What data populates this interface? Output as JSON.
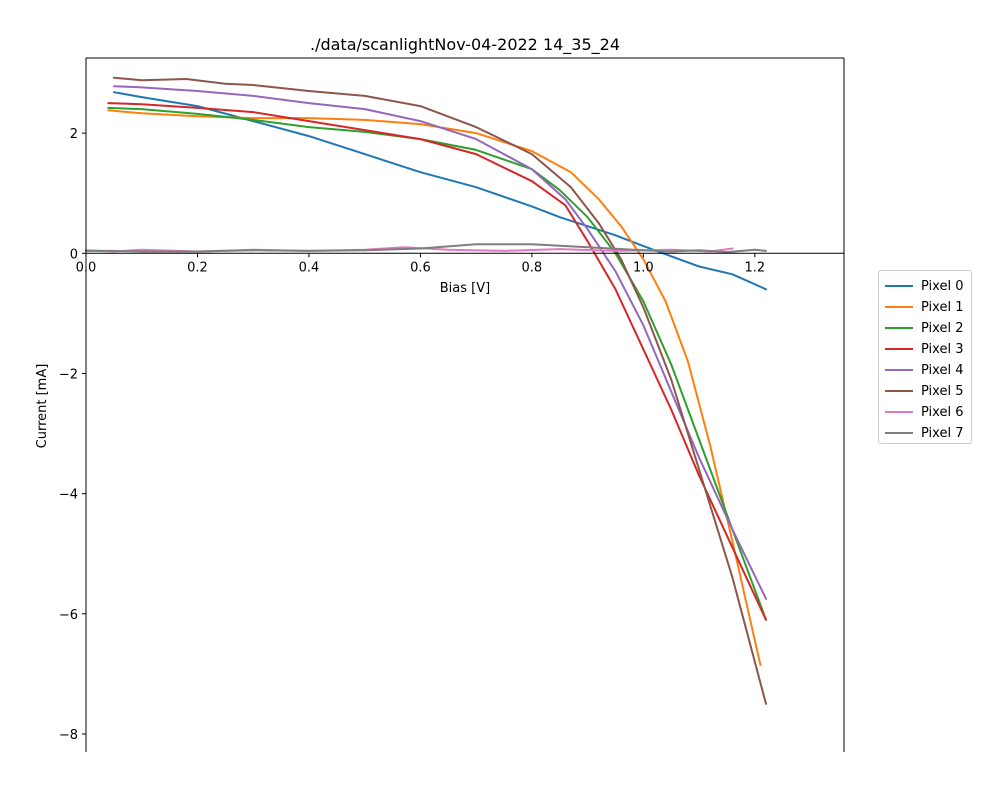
{
  "chart_data": {
    "type": "line",
    "title": "./data/scanlightNov-04-2022 14_35_24",
    "xlabel": "Bias [V]",
    "ylabel": "Current [mA]",
    "xlim": [
      0.0,
      1.36
    ],
    "ylim": [
      -8.3,
      3.25
    ],
    "x_ticks": [
      0.0,
      0.2,
      0.4,
      0.6,
      0.8,
      1.0,
      1.2
    ],
    "x_tick_labels": [
      "0.0",
      "0.2",
      "0.4",
      "0.6",
      "0.8",
      "1.0",
      "1.2"
    ],
    "y_ticks": [
      2,
      0,
      -2,
      -4,
      -6,
      -8
    ],
    "y_tick_labels": [
      "2",
      "0",
      "−2",
      "−4",
      "−6",
      "−8"
    ],
    "grid": false,
    "legend_position": "outside-right",
    "series": [
      {
        "name": "Pixel 0",
        "color": "#1f77b4",
        "x": [
          0.05,
          0.1,
          0.2,
          0.3,
          0.4,
          0.5,
          0.6,
          0.7,
          0.8,
          0.85,
          0.9,
          0.95,
          1.0,
          1.05,
          1.1,
          1.16,
          1.22
        ],
        "y": [
          2.68,
          2.6,
          2.45,
          2.2,
          1.95,
          1.65,
          1.35,
          1.1,
          0.78,
          0.6,
          0.45,
          0.3,
          0.12,
          -0.05,
          -0.22,
          -0.35,
          -0.6
        ]
      },
      {
        "name": "Pixel 1",
        "color": "#ff7f0e",
        "x": [
          0.04,
          0.1,
          0.2,
          0.3,
          0.4,
          0.5,
          0.6,
          0.7,
          0.8,
          0.87,
          0.92,
          0.96,
          1.0,
          1.04,
          1.08,
          1.12,
          1.16,
          1.21
        ],
        "y": [
          2.38,
          2.33,
          2.28,
          2.25,
          2.25,
          2.22,
          2.15,
          2.0,
          1.7,
          1.35,
          0.9,
          0.45,
          -0.1,
          -0.8,
          -1.8,
          -3.2,
          -4.8,
          -6.85
        ]
      },
      {
        "name": "Pixel 2",
        "color": "#2ca02c",
        "x": [
          0.04,
          0.1,
          0.2,
          0.3,
          0.4,
          0.5,
          0.6,
          0.7,
          0.8,
          0.85,
          0.9,
          0.95,
          1.0,
          1.05,
          1.1,
          1.16,
          1.22
        ],
        "y": [
          2.42,
          2.4,
          2.32,
          2.22,
          2.1,
          2.02,
          1.9,
          1.72,
          1.4,
          1.05,
          0.6,
          0.0,
          -0.8,
          -1.85,
          -3.1,
          -4.6,
          -6.1
        ]
      },
      {
        "name": "Pixel 3",
        "color": "#d62728",
        "x": [
          0.04,
          0.1,
          0.2,
          0.3,
          0.4,
          0.5,
          0.6,
          0.7,
          0.8,
          0.86,
          0.9,
          0.95,
          1.0,
          1.05,
          1.1,
          1.16,
          1.22
        ],
        "y": [
          2.5,
          2.48,
          2.42,
          2.35,
          2.2,
          2.05,
          1.9,
          1.65,
          1.2,
          0.8,
          0.2,
          -0.6,
          -1.6,
          -2.6,
          -3.7,
          -4.9,
          -6.1
        ]
      },
      {
        "name": "Pixel 4",
        "color": "#9467bd",
        "x": [
          0.05,
          0.1,
          0.2,
          0.3,
          0.4,
          0.5,
          0.6,
          0.7,
          0.8,
          0.86,
          0.9,
          0.95,
          1.0,
          1.05,
          1.1,
          1.16,
          1.22
        ],
        "y": [
          2.78,
          2.76,
          2.7,
          2.62,
          2.5,
          2.4,
          2.2,
          1.9,
          1.4,
          0.9,
          0.4,
          -0.3,
          -1.2,
          -2.3,
          -3.4,
          -4.6,
          -5.75
        ]
      },
      {
        "name": "Pixel 5",
        "color": "#8c564b",
        "x": [
          0.05,
          0.1,
          0.18,
          0.25,
          0.3,
          0.4,
          0.5,
          0.6,
          0.7,
          0.8,
          0.87,
          0.92,
          0.96,
          1.0,
          1.05,
          1.1,
          1.16,
          1.22
        ],
        "y": [
          2.92,
          2.88,
          2.9,
          2.82,
          2.8,
          2.7,
          2.62,
          2.45,
          2.1,
          1.65,
          1.1,
          0.5,
          -0.1,
          -0.9,
          -2.1,
          -3.6,
          -5.4,
          -7.5
        ]
      },
      {
        "name": "Pixel 6",
        "color": "#e377c2",
        "x": [
          0.0,
          0.05,
          0.1,
          0.2,
          0.3,
          0.4,
          0.5,
          0.57,
          0.65,
          0.75,
          0.85,
          0.95,
          1.05,
          1.12,
          1.16
        ],
        "y": [
          0.05,
          0.03,
          0.06,
          0.03,
          0.06,
          0.04,
          0.06,
          0.1,
          0.06,
          0.04,
          0.07,
          0.04,
          0.06,
          0.03,
          0.08
        ]
      },
      {
        "name": "Pixel 7",
        "color": "#7f7f7f",
        "x": [
          0.0,
          0.05,
          0.1,
          0.2,
          0.3,
          0.4,
          0.5,
          0.6,
          0.7,
          0.8,
          0.9,
          1.0,
          1.05,
          1.1,
          1.15,
          1.2,
          1.22
        ],
        "y": [
          0.04,
          0.04,
          0.03,
          0.03,
          0.05,
          0.04,
          0.05,
          0.08,
          0.15,
          0.15,
          0.1,
          0.05,
          0.03,
          0.05,
          0.02,
          0.06,
          0.04
        ]
      }
    ]
  }
}
